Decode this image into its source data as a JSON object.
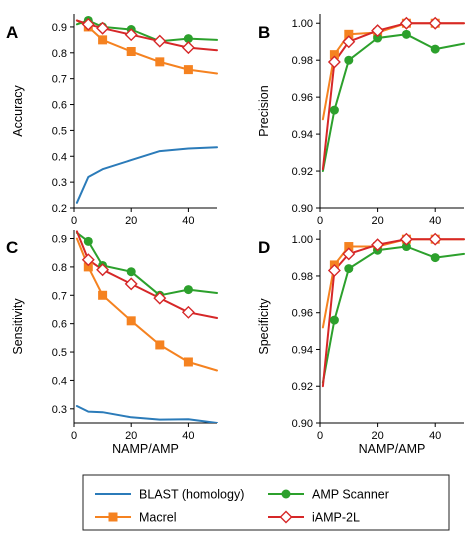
{
  "chart_data": [
    {
      "panel": "A",
      "type": "line",
      "xlabel": "",
      "ylabel": "Accuracy",
      "xlim": [
        0,
        50
      ],
      "ylim": [
        0.2,
        0.95
      ],
      "xticks": [
        0,
        20,
        40
      ],
      "yticks": [
        0.2,
        0.3,
        0.4,
        0.5,
        0.6,
        0.7,
        0.8,
        0.9
      ],
      "series": [
        {
          "name": "BLAST (homology)",
          "color": "#2b7bb9",
          "marker": "none",
          "x": [
            1,
            5,
            10,
            20,
            30,
            40,
            50
          ],
          "y": [
            0.22,
            0.32,
            0.35,
            0.385,
            0.42,
            0.43,
            0.435
          ]
        },
        {
          "name": "Macrel",
          "color": "#f58220",
          "marker": "square",
          "x": [
            1,
            5,
            10,
            20,
            30,
            40,
            50
          ],
          "y": [
            0.925,
            0.9,
            0.85,
            0.805,
            0.765,
            0.735,
            0.72
          ],
          "markers_at": [
            5,
            10,
            20,
            30,
            40
          ]
        },
        {
          "name": "AMP Scanner",
          "color": "#2ca02c",
          "marker": "circle",
          "x": [
            1,
            5,
            10,
            20,
            30,
            40,
            50
          ],
          "y": [
            0.91,
            0.925,
            0.9,
            0.89,
            0.845,
            0.855,
            0.85
          ],
          "markers_at": [
            5,
            10,
            20,
            30,
            40
          ]
        },
        {
          "name": "iAMP-2L",
          "color": "#d62728",
          "marker": "diamond",
          "x": [
            1,
            5,
            10,
            20,
            30,
            40,
            50
          ],
          "y": [
            0.925,
            0.91,
            0.895,
            0.87,
            0.845,
            0.82,
            0.81
          ],
          "markers_at": [
            5,
            10,
            20,
            30,
            40
          ]
        }
      ]
    },
    {
      "panel": "B",
      "type": "line",
      "xlabel": "",
      "ylabel": "Precision",
      "xlim": [
        0,
        50
      ],
      "ylim": [
        0.9,
        1.005
      ],
      "xticks": [
        0,
        20,
        40
      ],
      "yticks": [
        0.9,
        0.92,
        0.94,
        0.96,
        0.98,
        1.0
      ],
      "series": [
        {
          "name": "Macrel",
          "color": "#f58220",
          "marker": "square",
          "x": [
            1,
            5,
            10,
            20,
            30,
            40,
            50
          ],
          "y": [
            0.948,
            0.983,
            0.994,
            0.995,
            1.0,
            1.0,
            1.0
          ],
          "markers_at": [
            5,
            10,
            20,
            30,
            40
          ]
        },
        {
          "name": "AMP Scanner",
          "color": "#2ca02c",
          "marker": "circle",
          "x": [
            1,
            5,
            10,
            20,
            30,
            40,
            50
          ],
          "y": [
            0.92,
            0.953,
            0.98,
            0.992,
            0.994,
            0.986,
            0.989
          ],
          "markers_at": [
            5,
            10,
            20,
            30,
            40
          ]
        },
        {
          "name": "iAMP-2L",
          "color": "#d62728",
          "marker": "diamond",
          "x": [
            1,
            5,
            10,
            20,
            30,
            40,
            50
          ],
          "y": [
            0.921,
            0.979,
            0.99,
            0.996,
            1.0,
            1.0,
            1.0
          ],
          "markers_at": [
            5,
            10,
            20,
            30,
            40
          ]
        }
      ]
    },
    {
      "panel": "C",
      "type": "line",
      "xlabel": "NAMP/AMP",
      "ylabel": "Sensitivity",
      "xlim": [
        0,
        50
      ],
      "ylim": [
        0.25,
        0.93
      ],
      "xticks": [
        0,
        20,
        40
      ],
      "yticks": [
        0.3,
        0.4,
        0.5,
        0.6,
        0.7,
        0.8,
        0.9
      ],
      "series": [
        {
          "name": "BLAST (homology)",
          "color": "#2b7bb9",
          "marker": "none",
          "x": [
            1,
            5,
            10,
            20,
            30,
            40,
            50
          ],
          "y": [
            0.31,
            0.29,
            0.288,
            0.27,
            0.262,
            0.263,
            0.25
          ]
        },
        {
          "name": "Macrel",
          "color": "#f58220",
          "marker": "square",
          "x": [
            1,
            5,
            10,
            20,
            30,
            40,
            50
          ],
          "y": [
            0.9,
            0.8,
            0.7,
            0.61,
            0.525,
            0.465,
            0.435
          ],
          "markers_at": [
            5,
            10,
            20,
            30,
            40
          ]
        },
        {
          "name": "AMP Scanner",
          "color": "#2ca02c",
          "marker": "circle",
          "x": [
            1,
            5,
            10,
            20,
            30,
            40,
            50
          ],
          "y": [
            0.92,
            0.89,
            0.805,
            0.783,
            0.7,
            0.72,
            0.708
          ],
          "markers_at": [
            5,
            10,
            20,
            30,
            40
          ]
        },
        {
          "name": "iAMP-2L",
          "color": "#d62728",
          "marker": "diamond",
          "x": [
            1,
            5,
            10,
            20,
            30,
            40,
            50
          ],
          "y": [
            0.925,
            0.825,
            0.79,
            0.74,
            0.69,
            0.64,
            0.62
          ],
          "markers_at": [
            5,
            10,
            20,
            30,
            40
          ]
        }
      ]
    },
    {
      "panel": "D",
      "type": "line",
      "xlabel": "NAMP/AMP",
      "ylabel": "Specificity",
      "xlim": [
        0,
        50
      ],
      "ylim": [
        0.9,
        1.005
      ],
      "xticks": [
        0,
        20,
        40
      ],
      "yticks": [
        0.9,
        0.92,
        0.94,
        0.96,
        0.98,
        1.0
      ],
      "series": [
        {
          "name": "Macrel",
          "color": "#f58220",
          "marker": "square",
          "x": [
            1,
            5,
            10,
            20,
            30,
            40,
            50
          ],
          "y": [
            0.952,
            0.986,
            0.996,
            0.996,
            1.0,
            1.0,
            1.0
          ],
          "markers_at": [
            5,
            10,
            20,
            30,
            40
          ]
        },
        {
          "name": "AMP Scanner",
          "color": "#2ca02c",
          "marker": "circle",
          "x": [
            1,
            5,
            10,
            20,
            30,
            40,
            50
          ],
          "y": [
            0.922,
            0.956,
            0.984,
            0.994,
            0.996,
            0.99,
            0.992
          ],
          "markers_at": [
            5,
            10,
            20,
            30,
            40
          ]
        },
        {
          "name": "iAMP-2L",
          "color": "#d62728",
          "marker": "diamond",
          "x": [
            1,
            5,
            10,
            20,
            30,
            40,
            50
          ],
          "y": [
            0.92,
            0.983,
            0.992,
            0.997,
            1.0,
            1.0,
            1.0
          ],
          "markers_at": [
            5,
            10,
            20,
            30,
            40
          ]
        }
      ]
    }
  ],
  "legend": {
    "placement": "bottom",
    "entries": [
      {
        "label": "BLAST (homology)",
        "color": "#2b7bb9",
        "marker": "none"
      },
      {
        "label": "AMP Scanner",
        "color": "#2ca02c",
        "marker": "circle"
      },
      {
        "label": "Macrel",
        "color": "#f58220",
        "marker": "square"
      },
      {
        "label": "iAMP-2L",
        "color": "#d62728",
        "marker": "diamond"
      }
    ]
  }
}
